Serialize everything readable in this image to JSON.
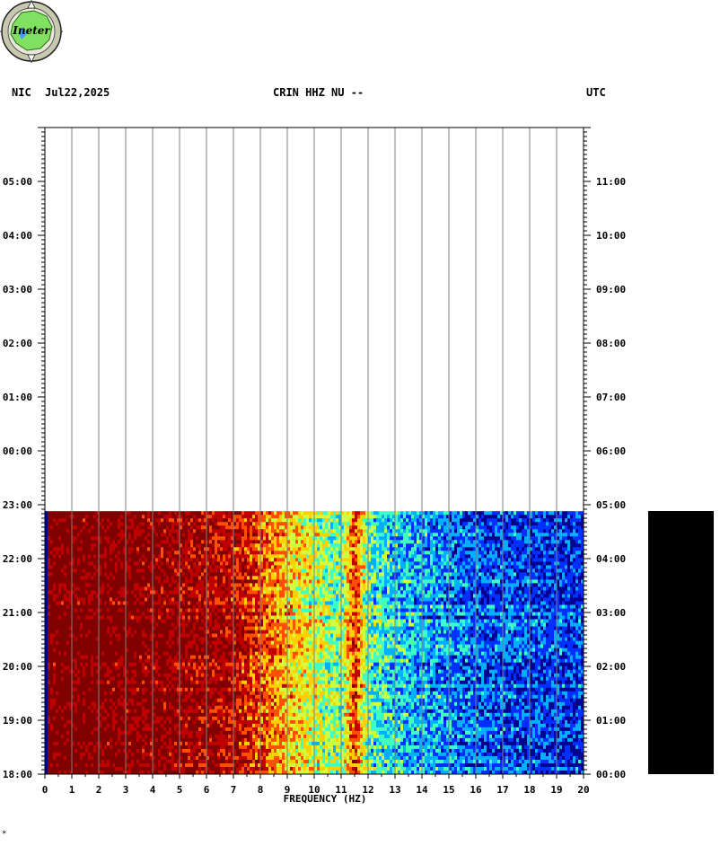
{
  "header": {
    "network": "NIC",
    "date": "Jul22,2025",
    "station": "CRIN HHZ NU --",
    "timezone": "UTC"
  },
  "logo": {
    "text": "Ineter"
  },
  "footnote": "*",
  "chart_data": {
    "type": "heatmap",
    "xlabel": "FREQUENCY (HZ)",
    "xlim": [
      0,
      20
    ],
    "x_ticks": [
      "0",
      "1",
      "2",
      "3",
      "4",
      "5",
      "6",
      "7",
      "8",
      "9",
      "10",
      "11",
      "12",
      "13",
      "14",
      "15",
      "16",
      "17",
      "18",
      "19",
      "20"
    ],
    "left_ticks": [
      "05:00",
      "04:00",
      "03:00",
      "02:00",
      "01:00",
      "00:00",
      "23:00",
      "22:00",
      "21:00",
      "20:00",
      "19:00",
      "18:00"
    ],
    "right_ticks": [
      "11:00",
      "10:00",
      "09:00",
      "08:00",
      "07:00",
      "06:00",
      "05:00",
      "04:00",
      "03:00",
      "02:00",
      "01:00",
      "00:00"
    ],
    "left_time_range_hours": [
      18,
      30
    ],
    "data_end_hour": 22.88,
    "colormap": [
      "#00008f",
      "#0030ff",
      "#00b0ff",
      "#40ffc0",
      "#d0ff40",
      "#ffd000",
      "#ff5000",
      "#c00000",
      "#800000"
    ],
    "frequency_power_profile": [
      {
        "hz": 0.0,
        "level": 0.05
      },
      {
        "hz": 0.15,
        "level": 0.97
      },
      {
        "hz": 2.0,
        "level": 0.97
      },
      {
        "hz": 5.5,
        "level": 0.9
      },
      {
        "hz": 7.0,
        "level": 0.86
      },
      {
        "hz": 8.0,
        "level": 0.74
      },
      {
        "hz": 9.5,
        "level": 0.56
      },
      {
        "hz": 11.0,
        "level": 0.42
      },
      {
        "hz": 11.5,
        "level": 0.78
      },
      {
        "hz": 12.0,
        "level": 0.4
      },
      {
        "hz": 13.5,
        "level": 0.3
      },
      {
        "hz": 16.0,
        "level": 0.2
      },
      {
        "hz": 20.0,
        "level": 0.15
      }
    ]
  }
}
